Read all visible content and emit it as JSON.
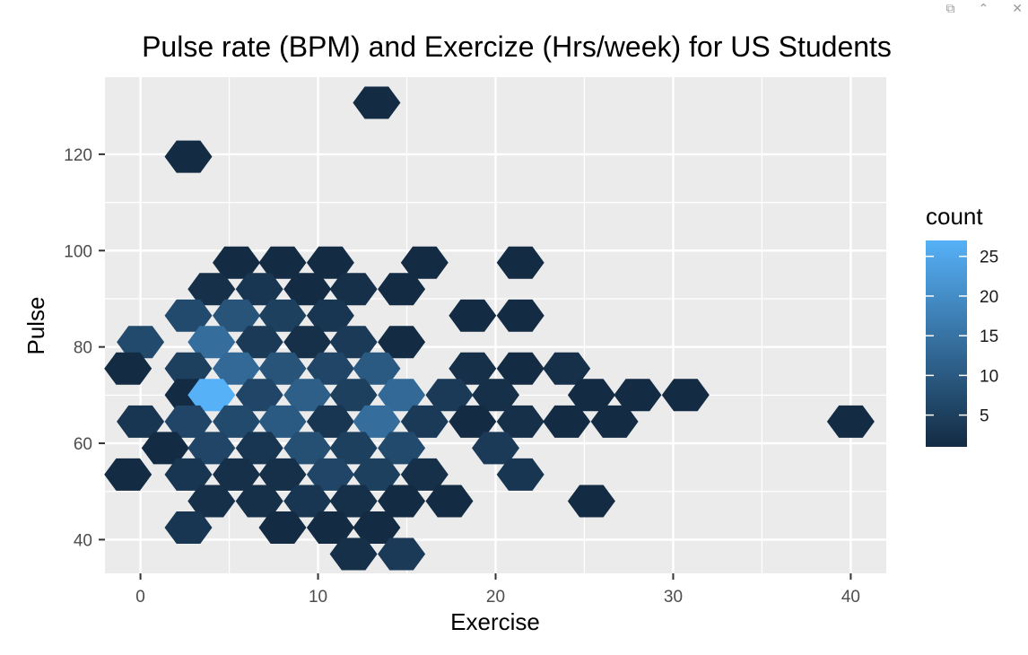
{
  "window_controls": {
    "icons": [
      "restore-icon",
      "collapse-icon",
      "close-icon"
    ],
    "glyphs": [
      "⧉",
      "⌃",
      "✕"
    ]
  },
  "chart_data": {
    "type": "hexbin",
    "title": "Pulse rate (BPM) and Exercize (Hrs/week) for US Students",
    "xlabel": "Exercise",
    "ylabel": "Pulse",
    "xlim": [
      -2,
      42
    ],
    "ylim": [
      33,
      136
    ],
    "x_ticks": [
      0,
      10,
      20,
      30,
      40
    ],
    "y_ticks": [
      40,
      60,
      80,
      100,
      120
    ],
    "grid": true,
    "background": "#ebebeb",
    "legend": {
      "title": "count",
      "position": "right",
      "ticks": [
        5,
        10,
        15,
        20,
        25
      ],
      "range": [
        1,
        27
      ],
      "color_low": "#132b43",
      "color_high": "#56b1f7"
    },
    "bins": [
      {
        "x": 13.3,
        "y": 130.7,
        "count": 1
      },
      {
        "x": 2.7,
        "y": 119.5,
        "count": 1
      },
      {
        "x": 5.4,
        "y": 97.5,
        "count": 1
      },
      {
        "x": 8.0,
        "y": 97.5,
        "count": 1
      },
      {
        "x": 10.7,
        "y": 97.5,
        "count": 1
      },
      {
        "x": 16.0,
        "y": 97.5,
        "count": 1
      },
      {
        "x": 21.4,
        "y": 97.5,
        "count": 1
      },
      {
        "x": 4.0,
        "y": 92.0,
        "count": 2
      },
      {
        "x": 6.7,
        "y": 92.0,
        "count": 3
      },
      {
        "x": 9.4,
        "y": 92.0,
        "count": 1
      },
      {
        "x": 12.0,
        "y": 92.0,
        "count": 2
      },
      {
        "x": 14.7,
        "y": 92.0,
        "count": 1
      },
      {
        "x": 2.7,
        "y": 86.5,
        "count": 7
      },
      {
        "x": 5.4,
        "y": 86.5,
        "count": 9
      },
      {
        "x": 8.0,
        "y": 86.5,
        "count": 5
      },
      {
        "x": 10.7,
        "y": 86.5,
        "count": 3
      },
      {
        "x": 18.7,
        "y": 86.5,
        "count": 1
      },
      {
        "x": 21.4,
        "y": 86.5,
        "count": 1
      },
      {
        "x": 0.0,
        "y": 81.0,
        "count": 7
      },
      {
        "x": 4.0,
        "y": 81.0,
        "count": 14
      },
      {
        "x": 6.7,
        "y": 81.0,
        "count": 4
      },
      {
        "x": 9.4,
        "y": 81.0,
        "count": 2
      },
      {
        "x": 12.0,
        "y": 81.0,
        "count": 4
      },
      {
        "x": 14.7,
        "y": 81.0,
        "count": 1
      },
      {
        "x": -0.7,
        "y": 75.5,
        "count": 1
      },
      {
        "x": 2.7,
        "y": 75.5,
        "count": 5
      },
      {
        "x": 5.4,
        "y": 75.5,
        "count": 13
      },
      {
        "x": 8.0,
        "y": 75.5,
        "count": 9
      },
      {
        "x": 10.7,
        "y": 75.5,
        "count": 6
      },
      {
        "x": 13.3,
        "y": 75.5,
        "count": 10
      },
      {
        "x": 18.7,
        "y": 75.5,
        "count": 2
      },
      {
        "x": 21.4,
        "y": 75.5,
        "count": 1
      },
      {
        "x": 24.0,
        "y": 75.5,
        "count": 2
      },
      {
        "x": 2.7,
        "y": 70.0,
        "count": 1
      },
      {
        "x": 4.0,
        "y": 70.0,
        "count": 27
      },
      {
        "x": 6.7,
        "y": 70.0,
        "count": 6
      },
      {
        "x": 9.4,
        "y": 70.0,
        "count": 11
      },
      {
        "x": 12.0,
        "y": 70.0,
        "count": 5
      },
      {
        "x": 14.7,
        "y": 70.0,
        "count": 13
      },
      {
        "x": 17.4,
        "y": 70.0,
        "count": 4
      },
      {
        "x": 20.0,
        "y": 70.0,
        "count": 2
      },
      {
        "x": 25.4,
        "y": 70.0,
        "count": 1
      },
      {
        "x": 28.0,
        "y": 70.0,
        "count": 1
      },
      {
        "x": 30.7,
        "y": 70.0,
        "count": 1
      },
      {
        "x": 0.0,
        "y": 64.5,
        "count": 3
      },
      {
        "x": 2.7,
        "y": 64.5,
        "count": 6
      },
      {
        "x": 5.4,
        "y": 64.5,
        "count": 7
      },
      {
        "x": 8.0,
        "y": 64.5,
        "count": 10
      },
      {
        "x": 10.7,
        "y": 64.5,
        "count": 3
      },
      {
        "x": 13.3,
        "y": 64.5,
        "count": 14
      },
      {
        "x": 16.0,
        "y": 64.5,
        "count": 4
      },
      {
        "x": 18.7,
        "y": 64.5,
        "count": 1
      },
      {
        "x": 21.4,
        "y": 64.5,
        "count": 2
      },
      {
        "x": 24.0,
        "y": 64.5,
        "count": 1
      },
      {
        "x": 26.7,
        "y": 64.5,
        "count": 1
      },
      {
        "x": 40.0,
        "y": 64.5,
        "count": 1
      },
      {
        "x": 1.4,
        "y": 59.0,
        "count": 1
      },
      {
        "x": 4.0,
        "y": 59.0,
        "count": 6
      },
      {
        "x": 6.7,
        "y": 59.0,
        "count": 3
      },
      {
        "x": 9.4,
        "y": 59.0,
        "count": 8
      },
      {
        "x": 12.0,
        "y": 59.0,
        "count": 5
      },
      {
        "x": 14.7,
        "y": 59.0,
        "count": 7
      },
      {
        "x": 20.0,
        "y": 59.0,
        "count": 4
      },
      {
        "x": -0.7,
        "y": 53.5,
        "count": 1
      },
      {
        "x": 2.7,
        "y": 53.5,
        "count": 3
      },
      {
        "x": 5.4,
        "y": 53.5,
        "count": 2
      },
      {
        "x": 8.0,
        "y": 53.5,
        "count": 2
      },
      {
        "x": 10.7,
        "y": 53.5,
        "count": 6
      },
      {
        "x": 13.3,
        "y": 53.5,
        "count": 5
      },
      {
        "x": 16.0,
        "y": 53.5,
        "count": 2
      },
      {
        "x": 21.4,
        "y": 53.5,
        "count": 3
      },
      {
        "x": 4.0,
        "y": 48.0,
        "count": 2
      },
      {
        "x": 6.7,
        "y": 48.0,
        "count": 2
      },
      {
        "x": 9.4,
        "y": 48.0,
        "count": 3
      },
      {
        "x": 12.0,
        "y": 48.0,
        "count": 2
      },
      {
        "x": 14.7,
        "y": 48.0,
        "count": 1
      },
      {
        "x": 17.4,
        "y": 48.0,
        "count": 1
      },
      {
        "x": 25.4,
        "y": 48.0,
        "count": 1
      },
      {
        "x": 2.7,
        "y": 42.5,
        "count": 3
      },
      {
        "x": 8.0,
        "y": 42.5,
        "count": 1
      },
      {
        "x": 10.7,
        "y": 42.5,
        "count": 1
      },
      {
        "x": 13.3,
        "y": 42.5,
        "count": 1
      },
      {
        "x": 12.0,
        "y": 37.0,
        "count": 2
      },
      {
        "x": 14.7,
        "y": 37.0,
        "count": 4
      }
    ]
  }
}
